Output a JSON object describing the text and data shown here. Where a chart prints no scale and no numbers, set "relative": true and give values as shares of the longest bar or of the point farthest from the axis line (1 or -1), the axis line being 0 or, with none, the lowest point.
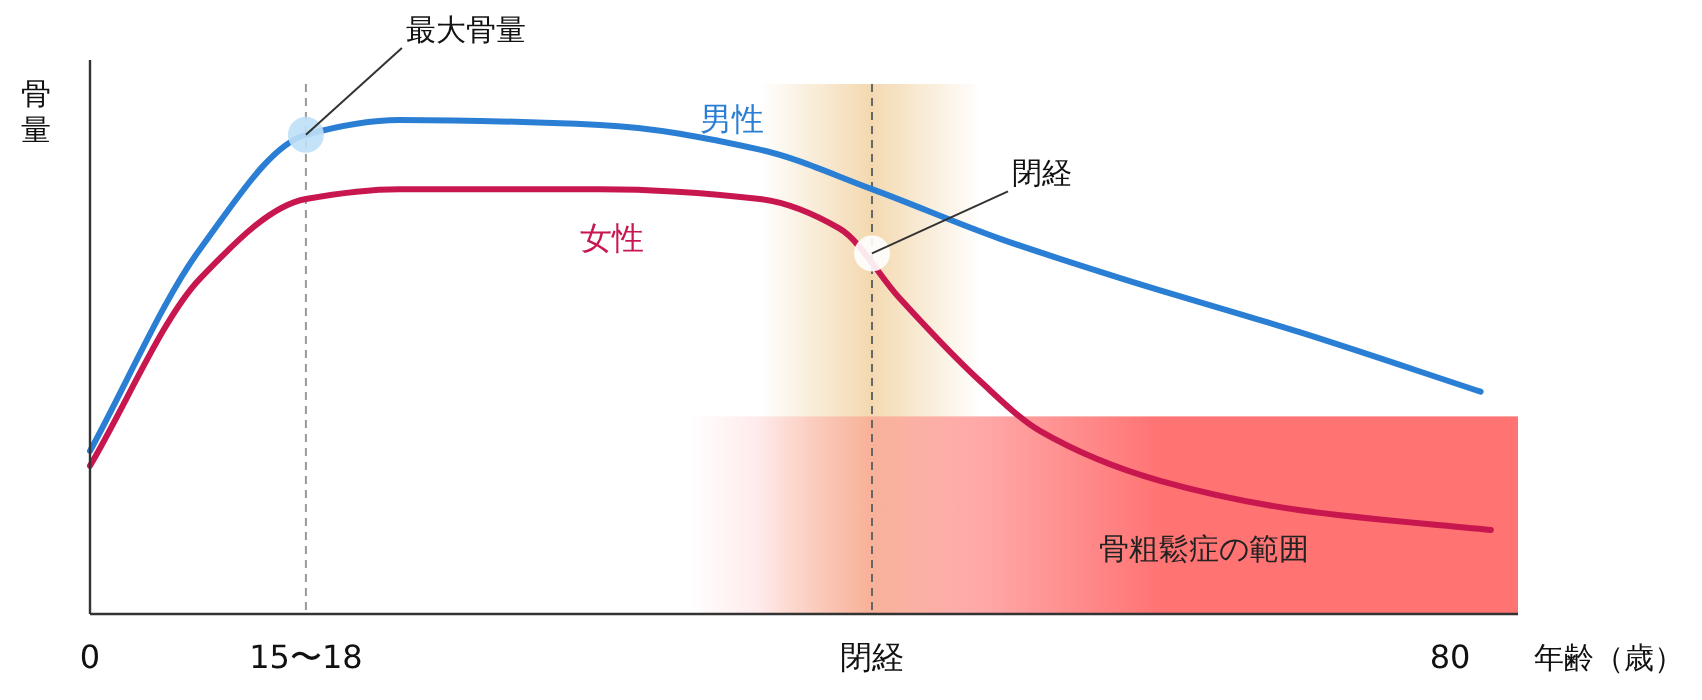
{
  "chart_data": {
    "type": "line",
    "relative": true,
    "ylabel": "骨量",
    "xlabel": "年齢（歳）",
    "xlim": [
      0,
      84
    ],
    "xticks": [
      0,
      {
        "value": 12.7,
        "label": "15〜18"
      },
      {
        "value": 46,
        "label": "閉経"
      },
      80
    ],
    "series": [
      {
        "name": "男性",
        "color": "#2a7fd4",
        "x": [
          0,
          6.5,
          12.7,
          18.2,
          30,
          39.4,
          46,
          53.5,
          60.6,
          71.2,
          81.8
        ],
        "values": [
          0.33,
          0.74,
          0.97,
          1,
          0.99,
          0.94,
          0.86,
          0.76,
          0.68,
          0.57,
          0.45
        ]
      },
      {
        "name": "女性",
        "color": "#c8174f",
        "x": [
          0,
          6.5,
          12.7,
          18.2,
          30,
          39.4,
          44.1,
          47.6,
          52.4,
          55.9,
          62.9,
          71.2,
          82.4
        ],
        "values": [
          0.3,
          0.68,
          0.84,
          0.86,
          0.86,
          0.84,
          0.78,
          0.64,
          0.47,
          0.37,
          0.27,
          0.21,
          0.17
        ]
      }
    ],
    "ref_lines": [
      {
        "axis": "x",
        "value": 12.7,
        "color": "#999999",
        "line_style": "dashed"
      },
      {
        "axis": "x",
        "value": 46,
        "color": "#666666",
        "line_style": "dashed"
      }
    ],
    "bands": [
      {
        "axis": "x",
        "from": 39.4,
        "to": 52.4,
        "color": "#f3d9b0"
      },
      {
        "axis": "y",
        "from": 0,
        "to": 0.4,
        "label": "骨粗鬆症の範囲",
        "color": "#ff7373"
      }
    ],
    "annotations": [
      {
        "text": "最大骨量",
        "x": 12.7,
        "y": 0.97
      },
      {
        "text": "閉経",
        "x": 46,
        "y": 0.73
      }
    ],
    "line_style": "solid",
    "marker": "none"
  }
}
